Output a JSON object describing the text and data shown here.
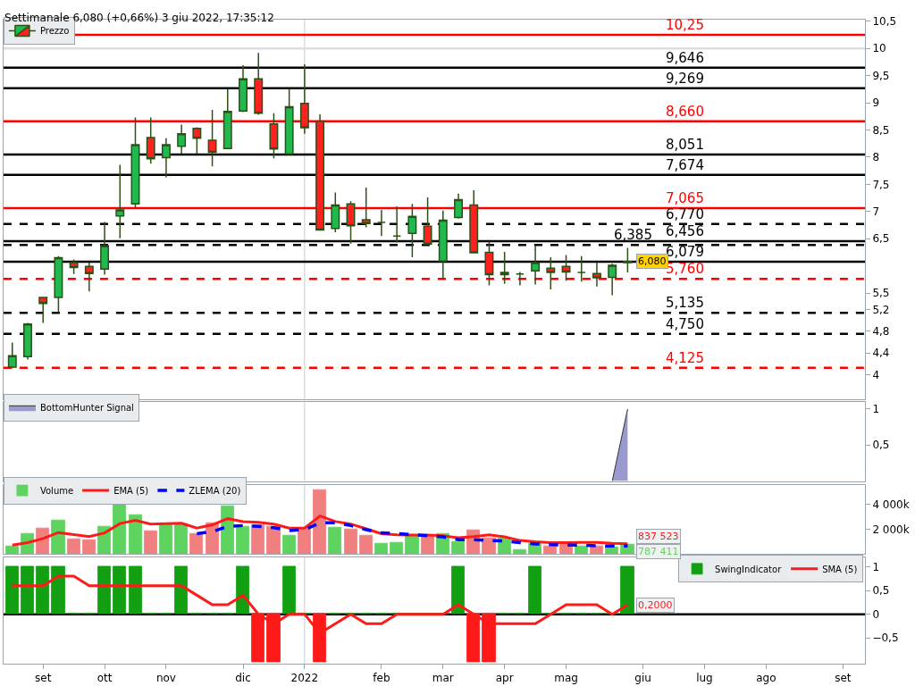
{
  "chart_data": [
    {
      "type": "candlestick",
      "title": "Settimanale 6,080 (+0,66%) 3 giu 2022, 17:35:12",
      "legend": "top left",
      "tick_labels": "y",
      "x": [
        "2021-08-23",
        "2021-08-30",
        "2021-09-06",
        "2021-09-13",
        "2021-09-20",
        "2021-09-27",
        "2021-10-04",
        "2021-10-11",
        "2021-10-18",
        "2021-10-25",
        "2021-11-01",
        "2021-11-08",
        "2021-11-15",
        "2021-11-22",
        "2021-11-29",
        "2021-12-06",
        "2021-12-13",
        "2021-12-20",
        "2021-12-27",
        "2022-01-03",
        "2022-01-10",
        "2022-01-17",
        "2022-01-24",
        "2022-01-31",
        "2022-02-07",
        "2022-02-14",
        "2022-02-21",
        "2022-02-28",
        "2022-03-07",
        "2022-03-14",
        "2022-03-21",
        "2022-03-28",
        "2022-04-04",
        "2022-04-11",
        "2022-04-18",
        "2022-04-25",
        "2022-05-02",
        "2022-05-09",
        "2022-05-16",
        "2022-05-23",
        "2022-05-30"
      ],
      "xlim": [
        "2021-08-19",
        "2022-09-15"
      ],
      "ylim": [
        3.55,
        10.53
      ],
      "yticks": [
        4,
        {
          "value": 4.4,
          "label": "4,4"
        },
        {
          "value": 4.8,
          "label": "4,8"
        },
        {
          "value": 5.2,
          "label": "5,2"
        },
        {
          "value": 5.5,
          "label": "5,5"
        },
        {
          "value": 6.5,
          "label": "6,5"
        },
        7,
        {
          "value": 7.5,
          "label": "7,5"
        },
        8,
        {
          "value": 8.5,
          "label": "8,5"
        },
        9,
        {
          "value": 9.5,
          "label": "9,5"
        },
        10,
        {
          "value": 10.5,
          "label": "10,5"
        }
      ],
      "series": [
        {
          "name": "Prezzo",
          "color": "#2d5016",
          "colors": [
            "#22b850",
            "#22b850",
            "#ff2020",
            "#22b850",
            "#ff2020",
            "#ff2020",
            "#22b850",
            "#22b850",
            "#22b850",
            "#ff2020",
            "#22b850",
            "#22b850",
            "#ff2020",
            "#ff2020",
            "#22b850",
            "#22b850",
            "#ff2020",
            "#ff2020",
            "#22b850",
            "#ff2020",
            "#ff2020",
            "#22b850",
            "#ff2020",
            "#ff2020",
            "#2d5016",
            "#2d5016",
            "#22b850",
            "#ff2020",
            "#22b850",
            "#22b850",
            "#ff2020",
            "#ff2020",
            "#2d5016",
            "#2d5016",
            "#22b850",
            "#ff2020",
            "#ff2020",
            "#2d5016",
            "#ff2020",
            "#22b850",
            "#2d5016"
          ],
          "ohlc": [
            [
              4.14,
              4.59,
              4.12,
              4.35
            ],
            [
              4.33,
              4.95,
              4.28,
              4.93
            ],
            [
              5.42,
              5.42,
              4.95,
              5.31
            ],
            [
              5.42,
              6.18,
              5.15,
              6.15
            ],
            [
              6.06,
              6.12,
              5.85,
              5.97
            ],
            [
              5.99,
              6.07,
              5.53,
              5.86
            ],
            [
              5.94,
              6.81,
              5.84,
              6.37
            ],
            [
              6.92,
              7.86,
              6.51,
              7.03
            ],
            [
              7.14,
              8.73,
              7.08,
              8.23
            ],
            [
              8.36,
              8.73,
              7.88,
              7.97
            ],
            [
              7.99,
              8.35,
              7.63,
              8.23
            ],
            [
              8.2,
              8.6,
              8.06,
              8.43
            ],
            [
              8.53,
              8.55,
              8.06,
              8.35
            ],
            [
              8.31,
              8.87,
              7.83,
              8.09
            ],
            [
              8.16,
              9.26,
              8.15,
              8.84
            ],
            [
              8.85,
              9.69,
              8.83,
              9.44
            ],
            [
              9.44,
              9.92,
              8.78,
              8.81
            ],
            [
              8.61,
              8.81,
              7.98,
              8.15
            ],
            [
              8.06,
              9.26,
              8.06,
              8.93
            ],
            [
              8.99,
              9.71,
              8.43,
              8.54
            ],
            [
              8.66,
              8.79,
              6.66,
              6.66
            ],
            [
              6.69,
              7.35,
              6.62,
              7.12
            ],
            [
              7.14,
              7.19,
              6.41,
              6.74
            ],
            [
              6.85,
              7.44,
              6.71,
              6.78
            ],
            [
              6.8,
              7.03,
              6.55,
              6.8
            ],
            [
              6.55,
              7.09,
              6.43,
              6.55
            ],
            [
              6.6,
              7.14,
              6.16,
              6.91
            ],
            [
              6.73,
              7.26,
              6.4,
              6.4
            ],
            [
              6.09,
              7.02,
              5.76,
              6.84
            ],
            [
              6.89,
              7.33,
              6.87,
              7.22
            ],
            [
              7.12,
              7.39,
              6.24,
              6.24
            ],
            [
              6.25,
              6.45,
              5.64,
              5.84
            ],
            [
              5.84,
              6.26,
              5.67,
              5.88
            ],
            [
              5.85,
              5.89,
              5.64,
              5.85
            ],
            [
              5.91,
              6.37,
              5.66,
              6.06
            ],
            [
              5.96,
              6.16,
              5.57,
              5.88
            ],
            [
              5.99,
              6.2,
              5.73,
              5.89
            ],
            [
              5.88,
              6.18,
              5.71,
              5.88
            ],
            [
              5.86,
              6.07,
              5.62,
              5.78
            ],
            [
              5.79,
              6.04,
              5.46,
              6.01
            ],
            [
              6.06,
              6.33,
              5.88,
              6.08
            ]
          ]
        }
      ],
      "ref_lines": [
        {
          "axis": "x",
          "value": "2022-01-03",
          "color": "#dcdcdc"
        },
        {
          "axis": "y",
          "value": 10,
          "color": "#dcdce6"
        },
        {
          "axis": "y",
          "value": 10.25,
          "label": "10,25",
          "color": "#ff0000",
          "line_style": "solid"
        },
        {
          "axis": "y",
          "value": 9.646,
          "label": "9,646",
          "color": "#000000",
          "line_style": "solid"
        },
        {
          "axis": "y",
          "value": 9.269,
          "label": "9,269",
          "color": "#000000",
          "line_style": "solid"
        },
        {
          "axis": "y",
          "value": 8.66,
          "label": "8,660",
          "color": "#ff0000",
          "line_style": "solid"
        },
        {
          "axis": "y",
          "value": 8.051,
          "label": "8,051",
          "color": "#000000",
          "line_style": "solid"
        },
        {
          "axis": "y",
          "value": 7.674,
          "label": "7,674",
          "color": "#000000",
          "line_style": "solid"
        },
        {
          "axis": "y",
          "value": 7.065,
          "label": "7,065",
          "color": "#ff0000",
          "line_style": "solid"
        },
        {
          "axis": "y",
          "value": 6.77,
          "label": "6,770",
          "color": "#000000",
          "line_style": "dashed"
        },
        {
          "axis": "y",
          "value": 6.456,
          "label": "6,456",
          "color": "#000000",
          "line_style": "solid"
        },
        {
          "axis": "y",
          "value": 6.385,
          "label": "6,385",
          "color": "#000000",
          "line_style": "dashed"
        },
        {
          "axis": "y",
          "value": 6.079,
          "label": "6,079",
          "color": "#000000",
          "line_style": "solid"
        },
        {
          "axis": "y",
          "value": 5.76,
          "label": "5,760",
          "color": "#ff0000",
          "line_style": "dashed"
        },
        {
          "axis": "y",
          "value": 5.135,
          "label": "5,135",
          "color": "#000000",
          "line_style": "dashed"
        },
        {
          "axis": "y",
          "value": 4.75,
          "label": "4,750",
          "color": "#000000",
          "line_style": "dashed"
        },
        {
          "axis": "y",
          "value": 4.125,
          "label": "4,125",
          "color": "#ff0000",
          "line_style": "dashed"
        }
      ],
      "annotations": [
        {
          "text": "6,080",
          "x": "2022-05-30",
          "y": 6.08
        }
      ]
    },
    {
      "type": "area",
      "legend": "top left",
      "tick_labels": "y",
      "xlim": [
        "2021-08-19",
        "2022-09-15"
      ],
      "ylim": [
        0,
        1.1
      ],
      "yticks": [
        {
          "value": 0.5,
          "label": "0,5"
        },
        1
      ],
      "series": [
        {
          "name": "BottomHunter Signal",
          "color": "#9a9ad0",
          "x": [
            "2022-05-23",
            "2022-05-30"
          ],
          "values": [
            0,
            1
          ]
        }
      ],
      "ref_lines": [
        {
          "axis": "x",
          "value": "2022-01-03",
          "color": "#dcdcdc"
        }
      ]
    },
    {
      "type": "bar",
      "legend": "top left",
      "tick_labels": "y",
      "x": [
        "2021-08-23",
        "2021-08-30",
        "2021-09-06",
        "2021-09-13",
        "2021-09-20",
        "2021-09-27",
        "2021-10-04",
        "2021-10-11",
        "2021-10-18",
        "2021-10-25",
        "2021-11-01",
        "2021-11-08",
        "2021-11-15",
        "2021-11-22",
        "2021-11-29",
        "2021-12-06",
        "2021-12-13",
        "2021-12-20",
        "2021-12-27",
        "2022-01-03",
        "2022-01-10",
        "2022-01-17",
        "2022-01-24",
        "2022-01-31",
        "2022-02-07",
        "2022-02-14",
        "2022-02-21",
        "2022-02-28",
        "2022-03-07",
        "2022-03-14",
        "2022-03-21",
        "2022-03-28",
        "2022-04-04",
        "2022-04-11",
        "2022-04-18",
        "2022-04-25",
        "2022-05-02",
        "2022-05-09",
        "2022-05-16",
        "2022-05-23",
        "2022-05-30"
      ],
      "xlim": [
        "2021-08-19",
        "2022-09-15"
      ],
      "ylim": [
        0,
        5570000
      ],
      "yticks": [
        {
          "value": 2000000,
          "label": "2 000k"
        },
        {
          "value": 4000000,
          "label": "4 000k"
        }
      ],
      "series": [
        {
          "name": "Volume",
          "type": "bar",
          "values": [
            660000,
            1640000,
            2030000,
            2680000,
            1210000,
            1110000,
            2190000,
            4010000,
            3160000,
            1830000,
            2410000,
            2410000,
            1640000,
            2480000,
            3840000,
            2220000,
            2350000,
            2190000,
            1470000,
            2060000,
            5140000,
            2120000,
            1960000,
            1470000,
            860000,
            920000,
            1470000,
            1470000,
            1610000,
            990000,
            1930000,
            1280000,
            1280000,
            340000,
            860000,
            660000,
            860000,
            660000,
            660000,
            550000,
            787411
          ],
          "colors": [
            "#5fd35f",
            "#5fd35f",
            "#f08080",
            "#5fd35f",
            "#f08080",
            "#f08080",
            "#5fd35f",
            "#5fd35f",
            "#5fd35f",
            "#f08080",
            "#5fd35f",
            "#5fd35f",
            "#f08080",
            "#f08080",
            "#5fd35f",
            "#5fd35f",
            "#f08080",
            "#f08080",
            "#5fd35f",
            "#f08080",
            "#f08080",
            "#5fd35f",
            "#f08080",
            "#f08080",
            "#5fd35f",
            "#5fd35f",
            "#5fd35f",
            "#f08080",
            "#5fd35f",
            "#5fd35f",
            "#f08080",
            "#f08080",
            "#5fd35f",
            "#5fd35f",
            "#5fd35f",
            "#f08080",
            "#f08080",
            "#5fd35f",
            "#f08080",
            "#5fd35f",
            "#5fd35f"
          ]
        },
        {
          "name": "ZLEMA (20)",
          "type": "line",
          "color": "#0000ff",
          "line_style": "dashed",
          "values": [
            null,
            null,
            null,
            null,
            null,
            null,
            null,
            null,
            null,
            null,
            null,
            null,
            1640000,
            1800000,
            2220000,
            2290000,
            2220000,
            2120000,
            1890000,
            1960000,
            2510000,
            2510000,
            2290000,
            1960000,
            1700000,
            1640000,
            1570000,
            1470000,
            1380000,
            1150000,
            1150000,
            1090000,
            1050000,
            920000,
            820000,
            760000,
            730000,
            730000,
            660000,
            660000,
            660000
          ]
        },
        {
          "name": "EMA (5)",
          "type": "line",
          "color": "#ff1a1a",
          "line_style": "solid",
          "values": [
            730000,
            920000,
            1250000,
            1730000,
            1570000,
            1410000,
            1700000,
            2450000,
            2710000,
            2410000,
            2450000,
            2480000,
            2090000,
            2350000,
            2840000,
            2610000,
            2540000,
            2410000,
            2090000,
            2090000,
            3060000,
            2610000,
            2410000,
            2030000,
            1640000,
            1540000,
            1530000,
            1520000,
            1470000,
            1310000,
            1400000,
            1540000,
            1380000,
            1090000,
            990000,
            920000,
            920000,
            930000,
            930000,
            870000,
            837523
          ]
        }
      ],
      "ref_lines": [
        {
          "axis": "x",
          "value": "2022-01-03",
          "color": "#dcdcdc"
        }
      ],
      "annotations": [
        {
          "text": "837 523",
          "x": "2022-05-30",
          "y": 837523
        },
        {
          "text": "787 411",
          "x": "2022-05-30",
          "y": 787411
        }
      ]
    },
    {
      "type": "bar",
      "legend": "top right",
      "x": [
        "2021-08-23",
        "2021-08-30",
        "2021-09-06",
        "2021-09-13",
        "2021-09-20",
        "2021-09-27",
        "2021-10-04",
        "2021-10-11",
        "2021-10-18",
        "2021-10-25",
        "2021-11-01",
        "2021-11-08",
        "2021-11-15",
        "2021-11-22",
        "2021-11-29",
        "2021-12-06",
        "2021-12-13",
        "2021-12-20",
        "2021-12-27",
        "2022-01-03",
        "2022-01-10",
        "2022-01-17",
        "2022-01-24",
        "2022-01-31",
        "2022-02-07",
        "2022-02-14",
        "2022-02-21",
        "2022-02-28",
        "2022-03-07",
        "2022-03-14",
        "2022-03-21",
        "2022-03-28",
        "2022-04-04",
        "2022-04-11",
        "2022-04-18",
        "2022-04-25",
        "2022-05-02",
        "2022-05-09",
        "2022-05-16",
        "2022-05-23",
        "2022-05-30"
      ],
      "xlim": [
        "2021-08-19",
        "2022-09-15"
      ],
      "xticks": [
        {
          "value": "2021-09-06",
          "label": "set"
        },
        {
          "value": "2021-10-04",
          "label": "ott"
        },
        {
          "value": "2021-11-01",
          "label": "nov"
        },
        {
          "value": "2021-12-06",
          "label": "dic"
        },
        {
          "value": "2022-01-03",
          "label": "2022"
        },
        {
          "value": "2022-02-07",
          "label": "feb"
        },
        {
          "value": "2022-03-07",
          "label": "mar"
        },
        {
          "value": "2022-04-04",
          "label": "apr"
        },
        {
          "value": "2022-05-02",
          "label": "mag"
        },
        {
          "value": "2022-06-06",
          "label": "giu"
        },
        {
          "value": "2022-07-04",
          "label": "lug"
        },
        {
          "value": "2022-08-01",
          "label": "ago"
        },
        {
          "value": "2022-09-05",
          "label": "set"
        }
      ],
      "ylim": [
        -1.04,
        1.19
      ],
      "yticks": [
        {
          "value": -0.5,
          "label": "−0,5"
        },
        0,
        {
          "value": 0.5,
          "label": "0,5"
        },
        1
      ],
      "series": [
        {
          "name": "SwingIndicator",
          "type": "bar",
          "values": [
            1,
            1,
            1,
            1,
            0,
            0,
            1,
            1,
            1,
            0,
            0,
            1,
            0,
            0,
            0,
            1,
            -1,
            -1,
            1,
            0,
            -1,
            0,
            0,
            0,
            0,
            0,
            0,
            0,
            0,
            1,
            -1,
            -1,
            0,
            0,
            1,
            0,
            0,
            0,
            0,
            0,
            1
          ],
          "colors": [
            "#12a012",
            "#12a012",
            "#12a012",
            "#12a012",
            "#12a012",
            "#12a012",
            "#12a012",
            "#12a012",
            "#12a012",
            "#12a012",
            "#12a012",
            "#12a012",
            "#12a012",
            "#12a012",
            "#12a012",
            "#12a012",
            "#ff1a1a",
            "#ff1a1a",
            "#12a012",
            "#12a012",
            "#ff1a1a",
            "#12a012",
            "#12a012",
            "#12a012",
            "#12a012",
            "#12a012",
            "#12a012",
            "#12a012",
            "#12a012",
            "#12a012",
            "#ff1a1a",
            "#ff1a1a",
            "#12a012",
            "#12a012",
            "#12a012",
            "#12a012",
            "#12a012",
            "#12a012",
            "#12a012",
            "#12a012",
            "#12a012"
          ]
        },
        {
          "name": "SMA (5)",
          "type": "line",
          "color": "#ff1a1a",
          "values": [
            0.6,
            0.6,
            0.6,
            0.8,
            0.8,
            0.6,
            0.6,
            0.6,
            0.6,
            0.6,
            0.6,
            0.6,
            0.4,
            0.2,
            0.2,
            0.4,
            0,
            -0.2,
            0,
            0,
            -0.4,
            -0.2,
            0,
            -0.2,
            -0.2,
            0,
            0,
            0,
            0,
            0.2,
            0,
            -0.2,
            -0.2,
            -0.2,
            -0.2,
            0,
            0.2,
            0.2,
            0.2,
            0,
            0.2
          ]
        }
      ],
      "ref_lines": [
        {
          "axis": "x",
          "value": "2022-01-03",
          "color": "#dcdcdc"
        },
        {
          "axis": "y",
          "value": 0,
          "color": "#000000",
          "line_style": "solid"
        }
      ],
      "annotations": [
        {
          "text": "0,2000",
          "x": "2022-05-30",
          "y": 0.2
        }
      ]
    }
  ]
}
